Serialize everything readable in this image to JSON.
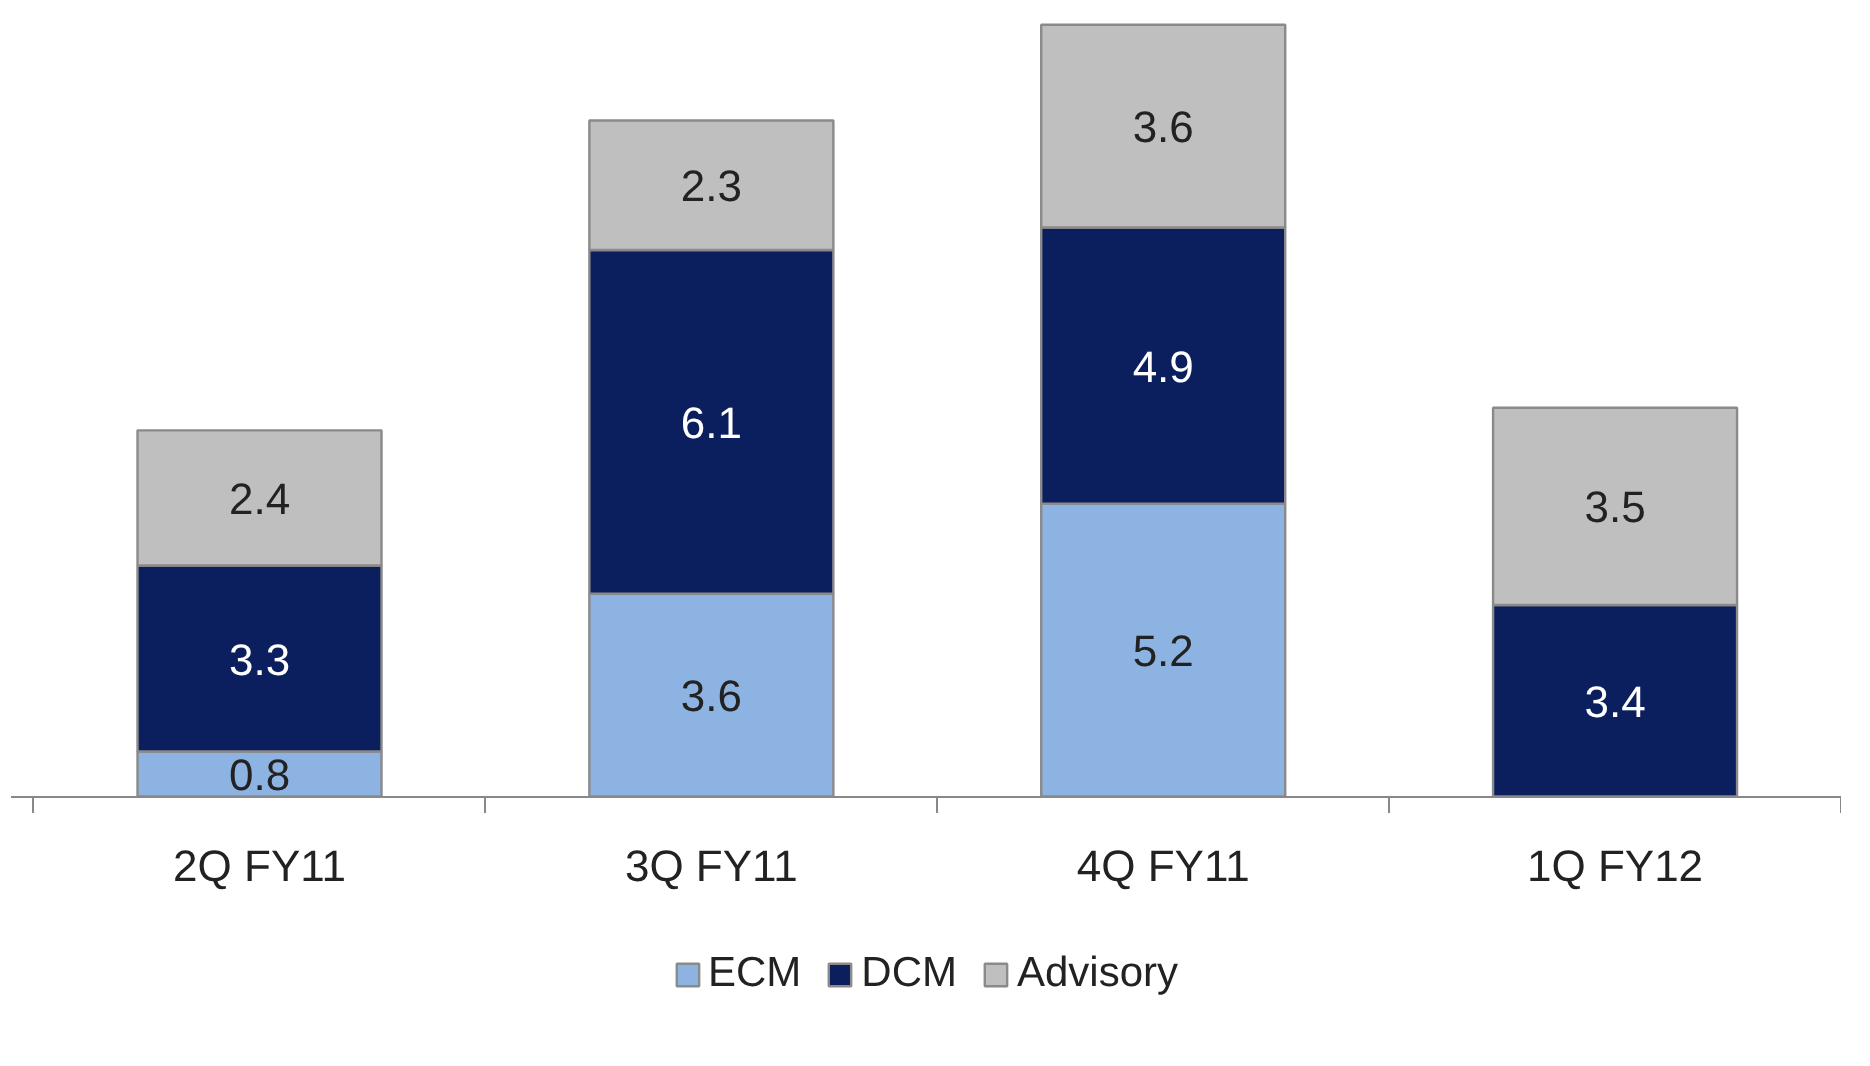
{
  "chart_data": {
    "type": "bar",
    "stacked": true,
    "categories": [
      "2Q FY11",
      "3Q FY11",
      "4Q FY11",
      "1Q FY12"
    ],
    "series": [
      {
        "name": "ECM",
        "color": "#8db3e2",
        "values": [
          0.8,
          3.6,
          5.2,
          null
        ]
      },
      {
        "name": "DCM",
        "color": "#0b1f5e",
        "values": [
          3.3,
          6.1,
          4.9,
          3.4
        ]
      },
      {
        "name": "Advisory",
        "color": "#bfbfbf",
        "values": [
          2.4,
          2.3,
          3.6,
          3.5
        ]
      }
    ],
    "tick_labels": "x",
    "data_labels": true,
    "legend": "bottom"
  }
}
